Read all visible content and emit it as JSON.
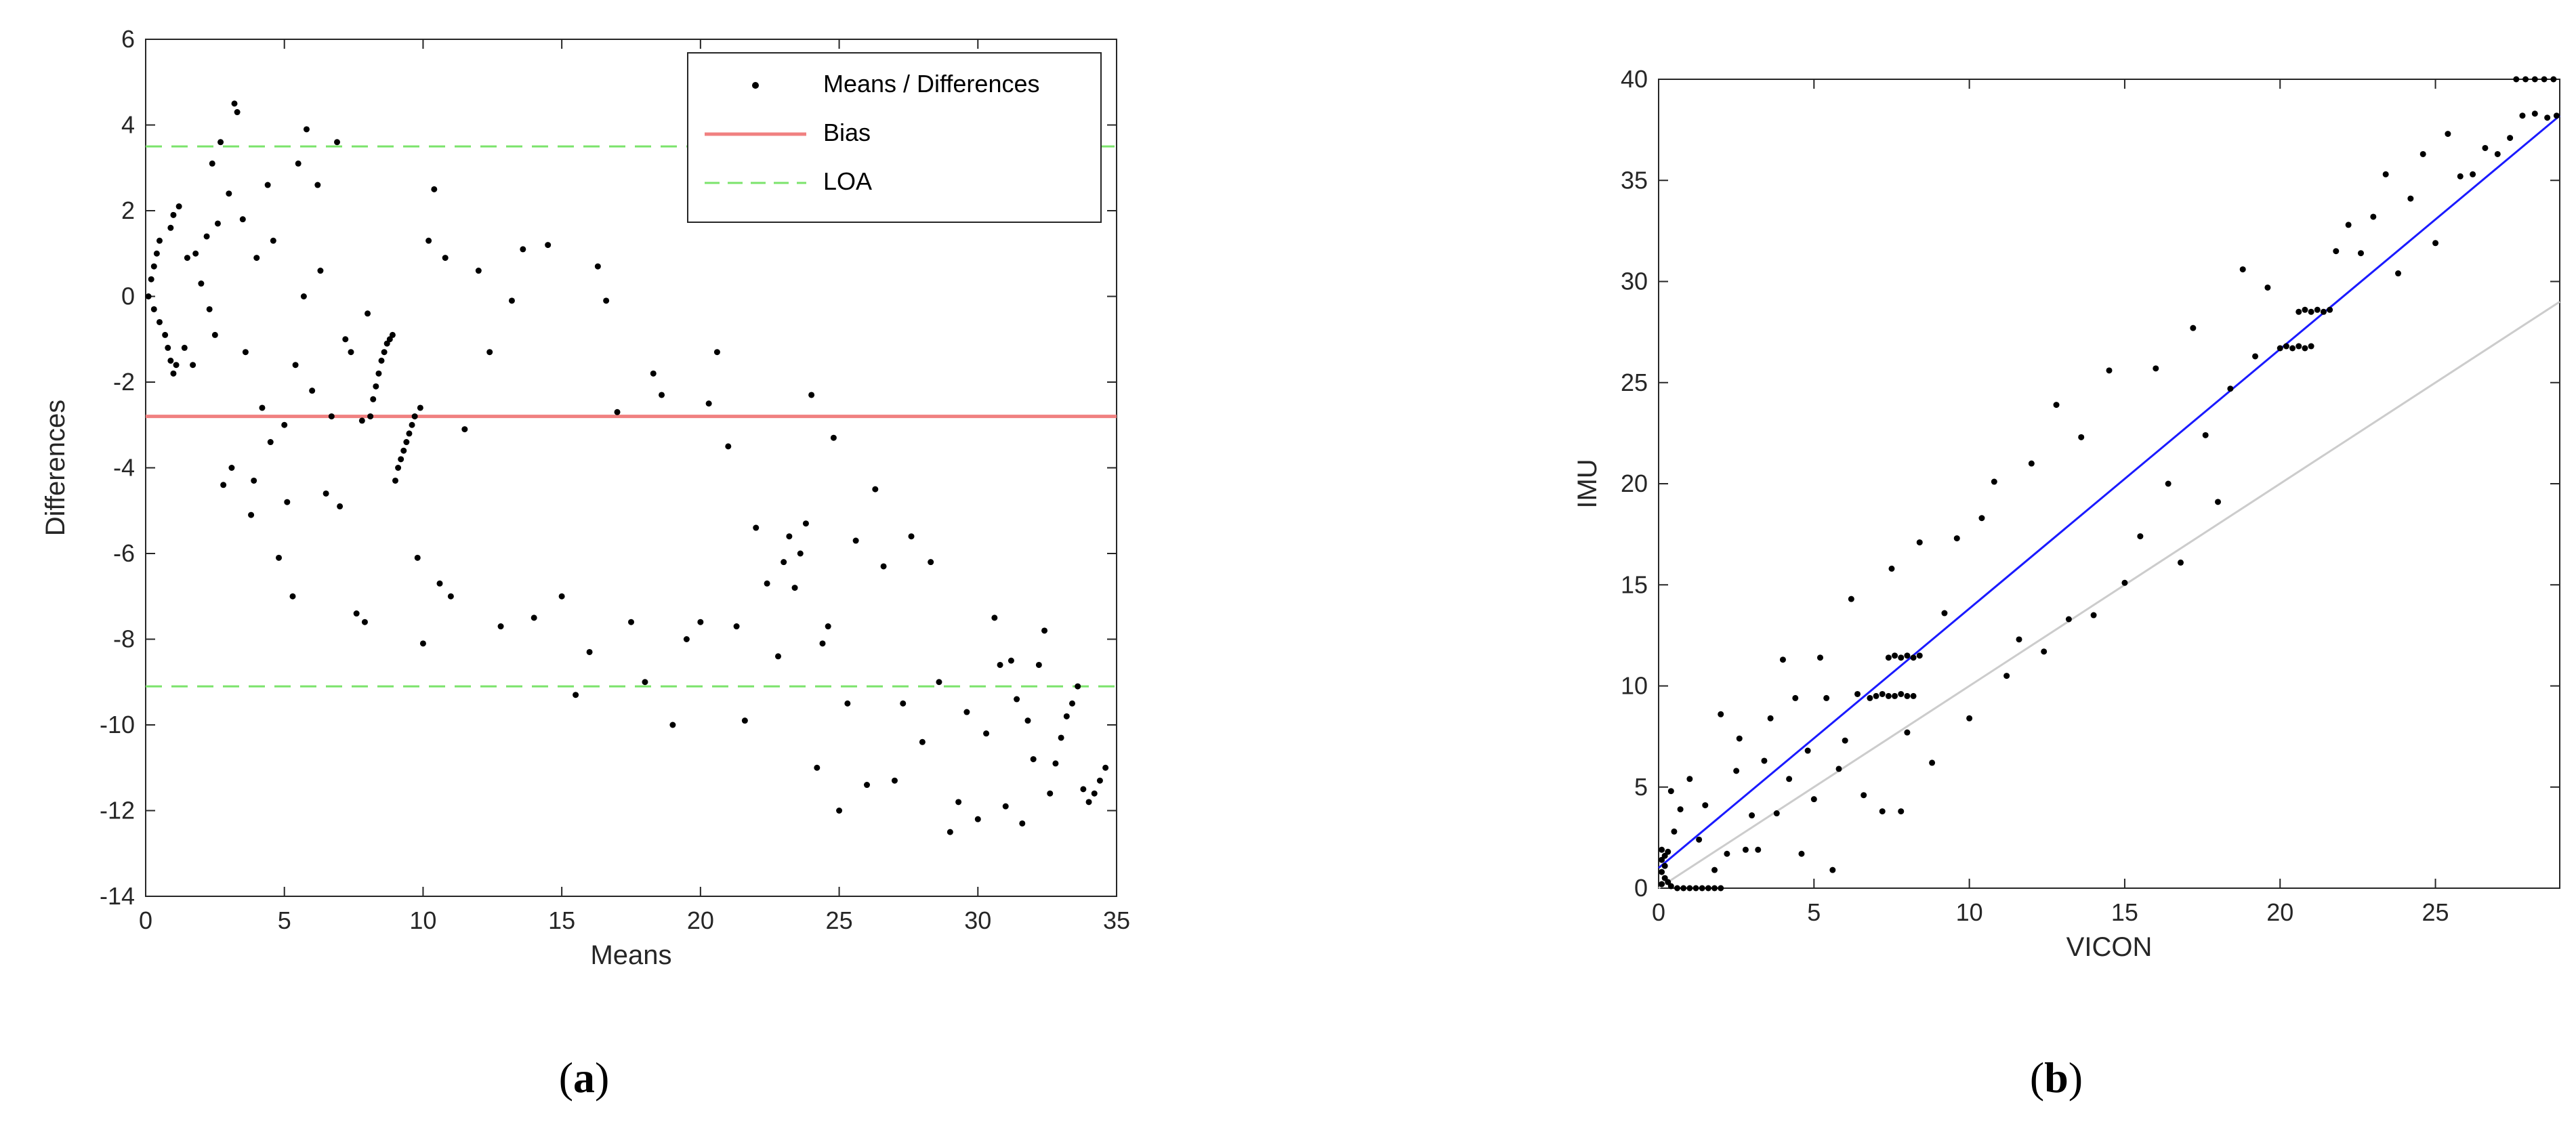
{
  "chart_data": [
    {
      "type": "scatter",
      "caption": {
        "open": "(",
        "letter": "a",
        "close": ")"
      },
      "xlabel": "Means",
      "ylabel": "Differences",
      "xlim": [
        0,
        35
      ],
      "ylim": [
        -14,
        6
      ],
      "xticks": [
        0,
        5,
        10,
        15,
        20,
        25,
        30,
        35
      ],
      "yticks": [
        -14,
        -12,
        -10,
        -8,
        -6,
        -4,
        -2,
        0,
        2,
        4,
        6
      ],
      "grid": false,
      "legend_position": "top-right",
      "legend": [
        {
          "label": "Means / Differences",
          "style": "marker"
        },
        {
          "label": "Bias",
          "style": "solid",
          "color": "#f08080"
        },
        {
          "label": "LOA",
          "style": "dashed",
          "color": "#7be36b"
        }
      ],
      "hlines": [
        {
          "name": "Bias",
          "y": -2.8,
          "color": "#f08080",
          "style": "solid"
        },
        {
          "name": "LOA",
          "y": 3.5,
          "color": "#7be36b",
          "style": "dashed"
        },
        {
          "name": "LOA",
          "y": -9.1,
          "color": "#7be36b",
          "style": "dashed"
        }
      ],
      "points": [
        [
          0.1,
          0.0
        ],
        [
          0.2,
          0.4
        ],
        [
          0.3,
          0.7
        ],
        [
          0.4,
          1.0
        ],
        [
          0.5,
          1.3
        ],
        [
          0.3,
          -0.3
        ],
        [
          0.5,
          -0.6
        ],
        [
          0.7,
          -0.9
        ],
        [
          0.8,
          -1.2
        ],
        [
          0.9,
          -1.5
        ],
        [
          1.0,
          -1.8
        ],
        [
          1.1,
          -1.6
        ],
        [
          0.9,
          1.6
        ],
        [
          1.0,
          1.9
        ],
        [
          1.2,
          2.1
        ],
        [
          1.4,
          -1.2
        ],
        [
          1.5,
          0.9
        ],
        [
          1.7,
          -1.6
        ],
        [
          1.8,
          1.0
        ],
        [
          2.0,
          0.3
        ],
        [
          2.2,
          1.4
        ],
        [
          2.3,
          -0.3
        ],
        [
          2.4,
          3.1
        ],
        [
          2.5,
          -0.9
        ],
        [
          2.6,
          1.7
        ],
        [
          2.7,
          3.6
        ],
        [
          2.8,
          -4.4
        ],
        [
          3.0,
          2.4
        ],
        [
          3.1,
          -4.0
        ],
        [
          3.2,
          4.5
        ],
        [
          3.3,
          4.3
        ],
        [
          3.5,
          1.8
        ],
        [
          3.6,
          -1.3
        ],
        [
          3.8,
          -5.1
        ],
        [
          3.9,
          -4.3
        ],
        [
          4.0,
          0.9
        ],
        [
          4.2,
          -2.6
        ],
        [
          4.4,
          2.6
        ],
        [
          4.5,
          -3.4
        ],
        [
          4.6,
          1.3
        ],
        [
          4.8,
          -6.1
        ],
        [
          5.0,
          -3.0
        ],
        [
          5.1,
          -4.8
        ],
        [
          5.3,
          -7.0
        ],
        [
          5.4,
          -1.6
        ],
        [
          5.5,
          3.1
        ],
        [
          5.7,
          0.0
        ],
        [
          5.8,
          3.9
        ],
        [
          6.0,
          -2.2
        ],
        [
          6.2,
          2.6
        ],
        [
          6.3,
          0.6
        ],
        [
          6.5,
          -4.6
        ],
        [
          6.7,
          -2.8
        ],
        [
          6.9,
          3.6
        ],
        [
          7.0,
          -4.9
        ],
        [
          7.2,
          -1.0
        ],
        [
          7.4,
          -1.3
        ],
        [
          7.6,
          -7.4
        ],
        [
          7.8,
          -2.9
        ],
        [
          7.9,
          -7.6
        ],
        [
          8.0,
          -0.4
        ],
        [
          8.1,
          -2.8
        ],
        [
          8.2,
          -2.4
        ],
        [
          8.3,
          -2.1
        ],
        [
          8.4,
          -1.8
        ],
        [
          8.5,
          -1.5
        ],
        [
          8.6,
          -1.3
        ],
        [
          8.7,
          -1.1
        ],
        [
          8.8,
          -1.0
        ],
        [
          8.9,
          -0.9
        ],
        [
          9.0,
          -4.3
        ],
        [
          9.1,
          -4.0
        ],
        [
          9.2,
          -3.8
        ],
        [
          9.3,
          -3.6
        ],
        [
          9.4,
          -3.4
        ],
        [
          9.5,
          -3.2
        ],
        [
          9.6,
          -3.0
        ],
        [
          9.7,
          -2.8
        ],
        [
          9.8,
          -6.1
        ],
        [
          9.9,
          -2.6
        ],
        [
          10.0,
          -8.1
        ],
        [
          10.2,
          1.3
        ],
        [
          10.4,
          2.5
        ],
        [
          10.6,
          -6.7
        ],
        [
          10.8,
          0.9
        ],
        [
          11.0,
          -7.0
        ],
        [
          11.5,
          -3.1
        ],
        [
          12.0,
          0.6
        ],
        [
          12.4,
          -1.3
        ],
        [
          12.8,
          -7.7
        ],
        [
          13.2,
          -0.1
        ],
        [
          13.6,
          1.1
        ],
        [
          14.0,
          -7.5
        ],
        [
          14.5,
          1.2
        ],
        [
          15.0,
          -7.0
        ],
        [
          15.5,
          -9.3
        ],
        [
          16.0,
          -8.3
        ],
        [
          16.3,
          0.7
        ],
        [
          16.6,
          -0.1
        ],
        [
          17.0,
          -2.7
        ],
        [
          17.5,
          -7.6
        ],
        [
          18.0,
          -9.0
        ],
        [
          18.3,
          -1.8
        ],
        [
          18.6,
          -2.3
        ],
        [
          19.0,
          -10.0
        ],
        [
          19.5,
          -8.0
        ],
        [
          20.0,
          -7.6
        ],
        [
          20.3,
          -2.5
        ],
        [
          20.6,
          -1.3
        ],
        [
          21.0,
          -3.5
        ],
        [
          21.3,
          -7.7
        ],
        [
          21.6,
          -9.9
        ],
        [
          22.0,
          -5.4
        ],
        [
          22.4,
          -6.7
        ],
        [
          22.8,
          -8.4
        ],
        [
          23.0,
          -6.2
        ],
        [
          23.2,
          -5.6
        ],
        [
          23.4,
          -6.8
        ],
        [
          23.6,
          -6.0
        ],
        [
          23.8,
          -5.3
        ],
        [
          24.0,
          -2.3
        ],
        [
          24.2,
          -11.0
        ],
        [
          24.4,
          -8.1
        ],
        [
          24.6,
          -7.7
        ],
        [
          24.8,
          -3.3
        ],
        [
          25.0,
          -12.0
        ],
        [
          25.3,
          -9.5
        ],
        [
          25.6,
          -5.7
        ],
        [
          26.0,
          -11.4
        ],
        [
          26.3,
          -4.5
        ],
        [
          26.6,
          -6.3
        ],
        [
          27.0,
          -11.3
        ],
        [
          27.3,
          -9.5
        ],
        [
          27.6,
          -5.6
        ],
        [
          28.0,
          -10.4
        ],
        [
          28.3,
          -6.2
        ],
        [
          28.6,
          -9.0
        ],
        [
          29.0,
          -12.5
        ],
        [
          29.3,
          -11.8
        ],
        [
          29.6,
          -9.7
        ],
        [
          30.0,
          -12.2
        ],
        [
          30.3,
          -10.2
        ],
        [
          30.6,
          -7.5
        ],
        [
          30.8,
          -8.6
        ],
        [
          31.0,
          -11.9
        ],
        [
          31.2,
          -8.5
        ],
        [
          31.4,
          -9.4
        ],
        [
          31.6,
          -12.3
        ],
        [
          31.8,
          -9.9
        ],
        [
          32.0,
          -10.8
        ],
        [
          32.2,
          -8.6
        ],
        [
          32.4,
          -7.8
        ],
        [
          32.6,
          -11.6
        ],
        [
          32.8,
          -10.9
        ],
        [
          33.0,
          -10.3
        ],
        [
          33.2,
          -9.8
        ],
        [
          33.4,
          -9.5
        ],
        [
          33.6,
          -9.1
        ],
        [
          33.8,
          -11.5
        ],
        [
          34.0,
          -11.8
        ],
        [
          34.2,
          -11.6
        ],
        [
          34.4,
          -11.3
        ],
        [
          34.6,
          -11.0
        ]
      ]
    },
    {
      "type": "scatter",
      "caption": {
        "open": "(",
        "letter": "b",
        "close": ")"
      },
      "xlabel": "VICON",
      "ylabel": "IMU",
      "xlim": [
        0,
        29
      ],
      "ylim": [
        0,
        40
      ],
      "xticks": [
        0,
        5,
        10,
        15,
        20,
        25
      ],
      "yticks": [
        0,
        5,
        10,
        15,
        20,
        25,
        30,
        35,
        40
      ],
      "grid": false,
      "lines": [
        {
          "name": "fit",
          "points": [
            [
              0,
              1.0
            ],
            [
              29,
              38.2
            ]
          ],
          "color": "#1a1aff"
        },
        {
          "name": "identity",
          "points": [
            [
              0,
              0
            ],
            [
              29,
              29
            ]
          ],
          "color": "#cccccc"
        }
      ],
      "points": [
        [
          0.1,
          0.2
        ],
        [
          0.1,
          0.8
        ],
        [
          0.1,
          1.4
        ],
        [
          0.1,
          1.9
        ],
        [
          0.2,
          0.5
        ],
        [
          0.2,
          1.1
        ],
        [
          0.2,
          1.6
        ],
        [
          0.3,
          0.3
        ],
        [
          0.3,
          1.8
        ],
        [
          0.4,
          0.1
        ],
        [
          0.4,
          4.8
        ],
        [
          0.5,
          2.8
        ],
        [
          0.6,
          0.0
        ],
        [
          0.8,
          0.0
        ],
        [
          1.0,
          0.0
        ],
        [
          1.2,
          0.0
        ],
        [
          1.4,
          0.0
        ],
        [
          1.6,
          0.0
        ],
        [
          1.8,
          0.0
        ],
        [
          2.0,
          0.0
        ],
        [
          0.7,
          3.9
        ],
        [
          1.0,
          5.4
        ],
        [
          1.3,
          2.4
        ],
        [
          1.5,
          4.1
        ],
        [
          1.8,
          0.9
        ],
        [
          2.0,
          8.6
        ],
        [
          2.2,
          1.7
        ],
        [
          2.5,
          5.8
        ],
        [
          2.6,
          7.4
        ],
        [
          2.8,
          1.9
        ],
        [
          3.0,
          3.6
        ],
        [
          3.2,
          1.9
        ],
        [
          3.4,
          6.3
        ],
        [
          3.6,
          8.4
        ],
        [
          3.8,
          3.7
        ],
        [
          4.0,
          11.3
        ],
        [
          4.2,
          5.4
        ],
        [
          4.4,
          9.4
        ],
        [
          4.6,
          1.7
        ],
        [
          4.8,
          6.8
        ],
        [
          5.0,
          4.4
        ],
        [
          5.2,
          11.4
        ],
        [
          5.4,
          9.4
        ],
        [
          5.6,
          0.9
        ],
        [
          5.8,
          5.9
        ],
        [
          6.0,
          7.3
        ],
        [
          6.2,
          14.3
        ],
        [
          6.4,
          9.6
        ],
        [
          6.6,
          4.6
        ],
        [
          6.8,
          9.4
        ],
        [
          7.0,
          9.5
        ],
        [
          7.2,
          9.6
        ],
        [
          7.4,
          9.5
        ],
        [
          7.6,
          9.5
        ],
        [
          7.8,
          9.6
        ],
        [
          8.0,
          9.5
        ],
        [
          8.2,
          9.5
        ],
        [
          7.4,
          11.4
        ],
        [
          7.6,
          11.5
        ],
        [
          7.8,
          11.4
        ],
        [
          8.0,
          11.5
        ],
        [
          8.2,
          11.4
        ],
        [
          8.4,
          11.5
        ],
        [
          7.2,
          3.8
        ],
        [
          7.5,
          15.8
        ],
        [
          7.8,
          3.8
        ],
        [
          8.0,
          7.7
        ],
        [
          8.4,
          17.1
        ],
        [
          8.8,
          6.2
        ],
        [
          9.2,
          13.6
        ],
        [
          9.6,
          17.3
        ],
        [
          10.0,
          8.4
        ],
        [
          10.4,
          18.3
        ],
        [
          10.8,
          20.1
        ],
        [
          11.2,
          10.5
        ],
        [
          11.6,
          12.3
        ],
        [
          12.0,
          21.0
        ],
        [
          12.4,
          11.7
        ],
        [
          12.8,
          23.9
        ],
        [
          13.2,
          13.3
        ],
        [
          13.6,
          22.3
        ],
        [
          14.0,
          13.5
        ],
        [
          14.5,
          25.6
        ],
        [
          15.0,
          15.1
        ],
        [
          15.5,
          17.4
        ],
        [
          16.0,
          25.7
        ],
        [
          16.4,
          20.0
        ],
        [
          16.8,
          16.1
        ],
        [
          17.2,
          27.7
        ],
        [
          17.6,
          22.4
        ],
        [
          18.0,
          19.1
        ],
        [
          18.4,
          24.7
        ],
        [
          18.8,
          30.6
        ],
        [
          19.2,
          26.3
        ],
        [
          19.6,
          29.7
        ],
        [
          20.0,
          26.7
        ],
        [
          20.2,
          26.8
        ],
        [
          20.4,
          26.7
        ],
        [
          20.6,
          26.8
        ],
        [
          20.8,
          26.7
        ],
        [
          21.0,
          26.8
        ],
        [
          20.6,
          28.5
        ],
        [
          20.8,
          28.6
        ],
        [
          21.0,
          28.5
        ],
        [
          21.2,
          28.6
        ],
        [
          21.4,
          28.5
        ],
        [
          21.6,
          28.6
        ],
        [
          21.8,
          31.5
        ],
        [
          22.2,
          32.8
        ],
        [
          22.6,
          31.4
        ],
        [
          23.0,
          33.2
        ],
        [
          23.4,
          35.3
        ],
        [
          23.8,
          30.4
        ],
        [
          24.2,
          34.1
        ],
        [
          24.6,
          36.3
        ],
        [
          25.0,
          31.9
        ],
        [
          25.4,
          37.3
        ],
        [
          25.8,
          35.2
        ],
        [
          26.2,
          35.3
        ],
        [
          26.6,
          36.6
        ],
        [
          27.0,
          36.3
        ],
        [
          27.4,
          37.1
        ],
        [
          27.8,
          38.2
        ],
        [
          28.2,
          38.3
        ],
        [
          28.6,
          38.1
        ],
        [
          28.9,
          38.2
        ],
        [
          27.6,
          40.0
        ],
        [
          27.9,
          40.0
        ],
        [
          28.2,
          40.0
        ],
        [
          28.5,
          40.0
        ],
        [
          28.8,
          40.0
        ]
      ]
    }
  ]
}
